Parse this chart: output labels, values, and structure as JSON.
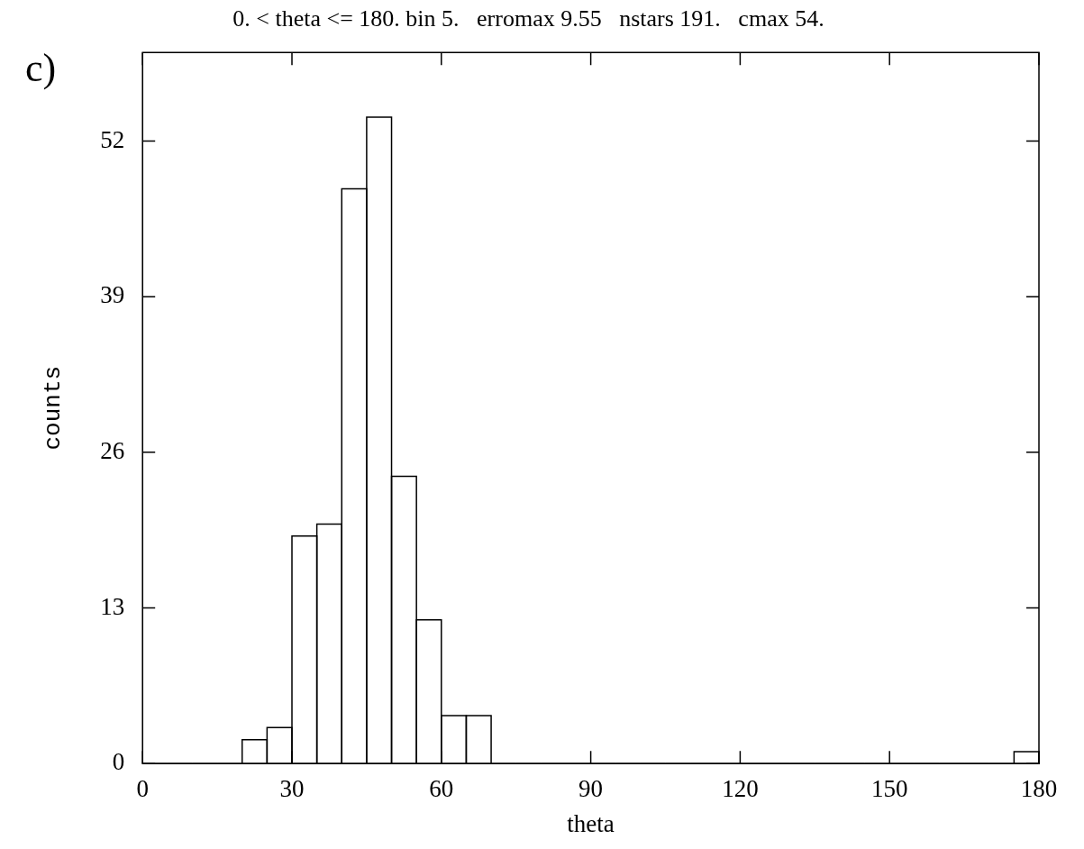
{
  "chart_data": {
    "type": "histogram",
    "title": "0. < theta <= 180. bin 5.   erromax 9.55   nstars 191.   cmax 54.",
    "xlabel": "theta",
    "ylabel": "counts",
    "annotations": [
      "c)"
    ],
    "bins": [
      0,
      5,
      10,
      15,
      20,
      25,
      30,
      35,
      40,
      45,
      50,
      55,
      60,
      65,
      70,
      75,
      80,
      85,
      90,
      95,
      100,
      105,
      110,
      115,
      120,
      125,
      130,
      135,
      140,
      145,
      150,
      155,
      160,
      165,
      170,
      175,
      180
    ],
    "values": [
      0,
      0,
      0,
      0,
      2,
      3,
      19,
      20,
      48,
      54,
      24,
      12,
      4,
      4,
      0,
      0,
      0,
      0,
      0,
      0,
      0,
      0,
      0,
      0,
      0,
      0,
      0,
      0,
      0,
      0,
      0,
      0,
      0,
      0,
      0,
      1
    ],
    "color": "#000000",
    "xlim": [
      0,
      180
    ],
    "xticks": [
      0,
      30,
      60,
      90,
      120,
      150,
      180
    ],
    "ylim": [
      0,
      59.4
    ],
    "yticks": [
      0,
      13,
      26,
      39,
      52
    ],
    "grid": false,
    "legend": false
  }
}
